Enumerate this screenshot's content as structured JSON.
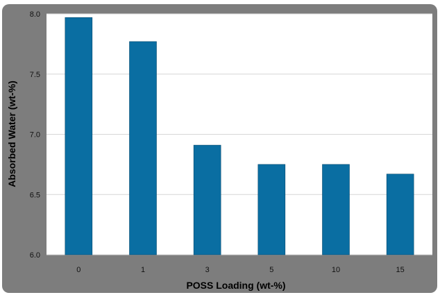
{
  "colors": {
    "frame": "#7d7d7d",
    "plot_background": "#ffffff",
    "bar": "#0a6ea2",
    "bar_edge": "#06486c",
    "gridline": "#d6d6d6"
  },
  "chart_data": {
    "type": "bar",
    "title": "",
    "xlabel": "POSS Loading (wt-%)",
    "ylabel": "Absorbed Water (wt-%)",
    "categories": [
      "0",
      "1",
      "3",
      "5",
      "10",
      "15"
    ],
    "values": [
      7.97,
      7.77,
      6.91,
      6.75,
      6.75,
      6.67
    ],
    "ylim": [
      6.0,
      8.0
    ],
    "yticks": [
      "6.0",
      "6.5",
      "7.0",
      "7.5",
      "8.0"
    ],
    "grid": "horizontal",
    "legend": "none"
  }
}
